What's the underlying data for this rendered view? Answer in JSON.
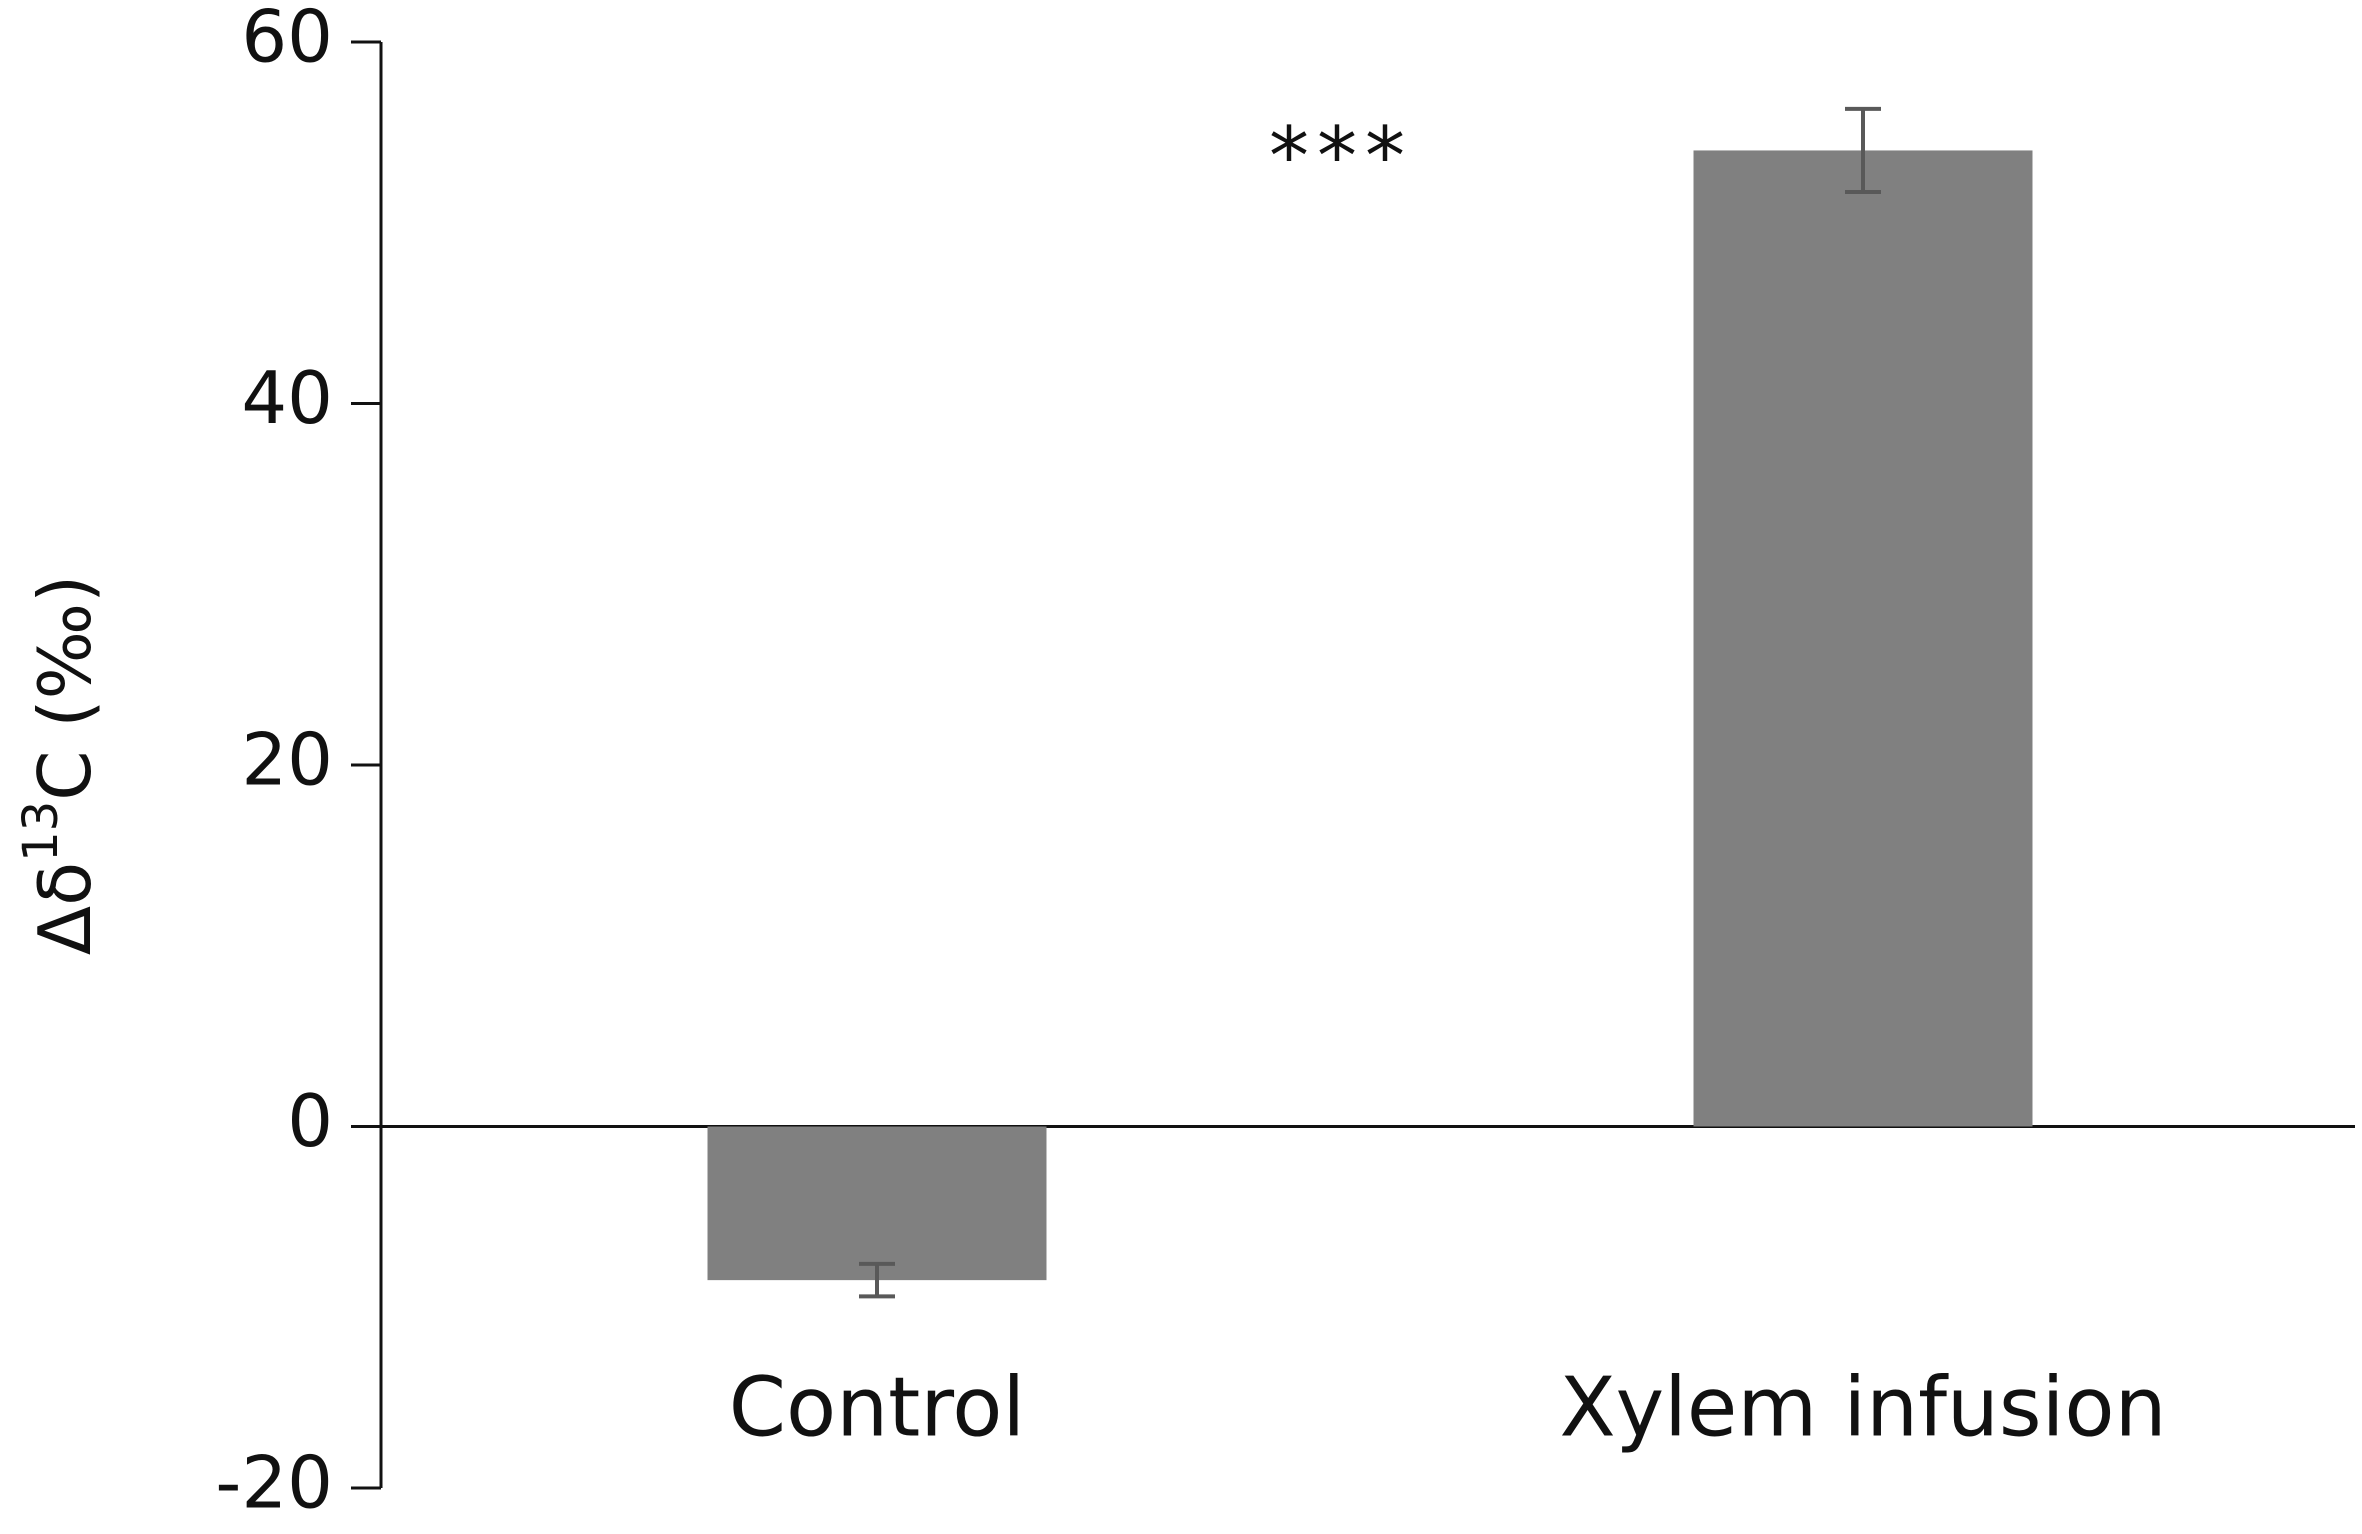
{
  "chart_data": {
    "type": "bar",
    "y_label_parts": [
      "Δδ",
      "13",
      "C (‰)"
    ],
    "categories": [
      "Control",
      "Xylem infusion"
    ],
    "values": [
      -8.5,
      54
    ],
    "errors": [
      0.9,
      2.3
    ],
    "color": "#808080",
    "error_color": "#595959",
    "annotation": "***",
    "ylim": [
      -20,
      60
    ],
    "yticks": [
      -20,
      0,
      20,
      40,
      60
    ]
  }
}
